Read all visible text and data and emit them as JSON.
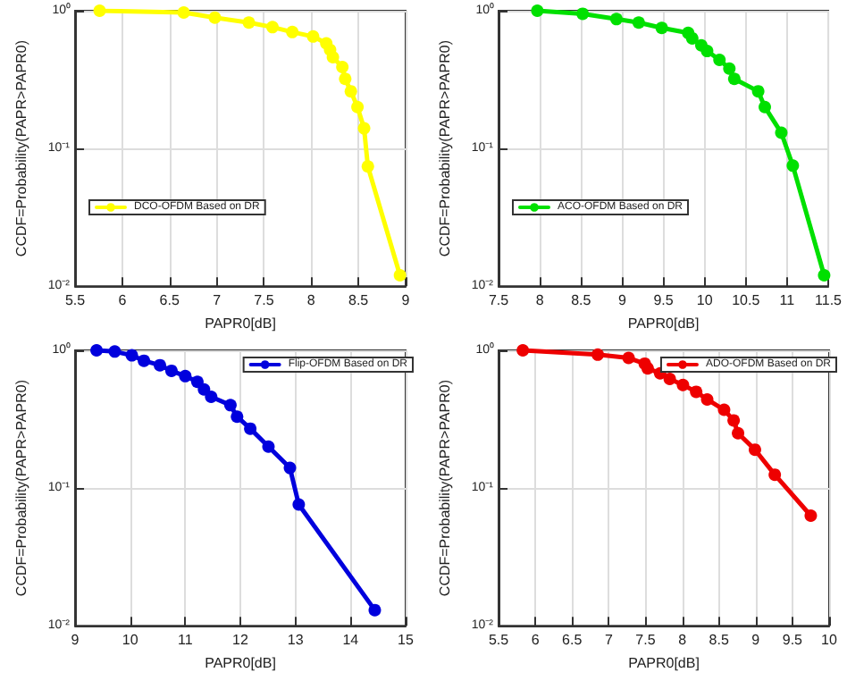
{
  "chart_data": [
    {
      "type": "line",
      "xlabel": "PAPR0[dB]",
      "ylabel": "CCDF=Probability(PAPR>PAPR0)",
      "x": [
        5.76,
        6.65,
        6.98,
        7.34,
        7.59,
        7.8,
        8.02,
        8.16,
        8.2,
        8.23,
        8.33,
        8.36,
        8.42,
        8.49,
        8.56,
        8.6,
        8.94
      ],
      "series": [
        {
          "name": "DCO-OFDM Based on DR",
          "color": "#ffff00",
          "values": [
            1.0,
            0.97,
            0.89,
            0.82,
            0.76,
            0.7,
            0.65,
            0.58,
            0.52,
            0.46,
            0.39,
            0.32,
            0.26,
            0.2,
            0.14,
            0.074,
            0.012
          ]
        }
      ],
      "xlim": [
        5.5,
        9
      ],
      "xticks": [
        5.5,
        6,
        6.5,
        7,
        7.5,
        8,
        8.5,
        9
      ],
      "ylim": [
        0.01,
        1
      ],
      "yticks": [
        {
          "value": 0.01,
          "label": "10⁻²"
        },
        {
          "value": 0.1,
          "label": "10⁻¹"
        },
        {
          "value": 1,
          "label": "10⁰"
        }
      ],
      "log": "y",
      "grid": true,
      "legend": "bottom left",
      "marker": "circle",
      "line_style": "solid"
    },
    {
      "type": "line",
      "xlabel": "PAPR0[dB]",
      "ylabel": "CCDF=Probability(PAPR>PAPR0)",
      "x": [
        7.97,
        8.52,
        8.93,
        9.2,
        9.48,
        9.8,
        9.85,
        9.96,
        10.03,
        10.18,
        10.3,
        10.36,
        10.65,
        10.73,
        10.93,
        11.07,
        11.45
      ],
      "series": [
        {
          "name": "ACO-OFDM Based on DR",
          "color": "#00e000",
          "values": [
            1.0,
            0.95,
            0.87,
            0.82,
            0.75,
            0.69,
            0.63,
            0.56,
            0.51,
            0.44,
            0.38,
            0.32,
            0.26,
            0.2,
            0.13,
            0.075,
            0.012
          ]
        }
      ],
      "xlim": [
        7.5,
        11.5
      ],
      "xticks": [
        7.5,
        8,
        8.5,
        9,
        9.5,
        10,
        10.5,
        11,
        11.5
      ],
      "ylim": [
        0.01,
        1
      ],
      "yticks": [
        {
          "value": 0.01,
          "label": "10⁻²"
        },
        {
          "value": 0.1,
          "label": "10⁻¹"
        },
        {
          "value": 1,
          "label": "10⁰"
        }
      ],
      "log": "y",
      "grid": true,
      "legend": "bottom left",
      "marker": "circle",
      "line_style": "solid"
    },
    {
      "type": "line",
      "xlabel": "PAPR0[dB]",
      "ylabel": "CCDF=Probability(PAPR>PAPR0)",
      "x": [
        9.39,
        9.72,
        10.03,
        10.25,
        10.54,
        10.75,
        11.0,
        11.22,
        11.34,
        11.47,
        11.82,
        11.94,
        12.18,
        12.51,
        12.9,
        13.06,
        14.44
      ],
      "series": [
        {
          "name": "Flip-OFDM Based on DR",
          "color": "#0000dd",
          "values": [
            1.0,
            0.98,
            0.92,
            0.84,
            0.78,
            0.71,
            0.65,
            0.59,
            0.52,
            0.46,
            0.4,
            0.33,
            0.27,
            0.2,
            0.14,
            0.076,
            0.013
          ]
        }
      ],
      "xlim": [
        9,
        15
      ],
      "xticks": [
        9,
        10,
        11,
        12,
        13,
        14,
        15
      ],
      "ylim": [
        0.01,
        1
      ],
      "yticks": [
        {
          "value": 0.01,
          "label": "10⁻²"
        },
        {
          "value": 0.1,
          "label": "10⁻¹"
        },
        {
          "value": 1,
          "label": "10⁰"
        }
      ],
      "log": "y",
      "grid": true,
      "legend": "top right",
      "marker": "circle",
      "line_style": "solid"
    },
    {
      "type": "line",
      "xlabel": "PAPR0[dB]",
      "ylabel": "CCDF=Probability(PAPR>PAPR0)",
      "x": [
        5.83,
        6.85,
        7.27,
        7.49,
        7.53,
        7.7,
        7.83,
        8.01,
        8.19,
        8.34,
        8.57,
        8.7,
        8.76,
        8.99,
        9.26,
        9.75
      ],
      "series": [
        {
          "name": "ADO-OFDM Based on DR",
          "color": "#ee0000",
          "values": [
            1.0,
            0.93,
            0.88,
            0.8,
            0.74,
            0.68,
            0.62,
            0.56,
            0.5,
            0.44,
            0.37,
            0.31,
            0.25,
            0.19,
            0.125,
            0.063
          ]
        }
      ],
      "xlim": [
        5.5,
        10
      ],
      "xticks": [
        5.5,
        6,
        6.5,
        7,
        7.5,
        8,
        8.5,
        9,
        9.5,
        10
      ],
      "ylim": [
        0.01,
        1
      ],
      "yticks": [
        {
          "value": 0.01,
          "label": "10⁻²"
        },
        {
          "value": 0.1,
          "label": "10⁻¹"
        },
        {
          "value": 1,
          "label": "10⁰"
        }
      ],
      "log": "y",
      "grid": true,
      "legend": "top right",
      "marker": "circle",
      "line_style": "solid"
    }
  ]
}
